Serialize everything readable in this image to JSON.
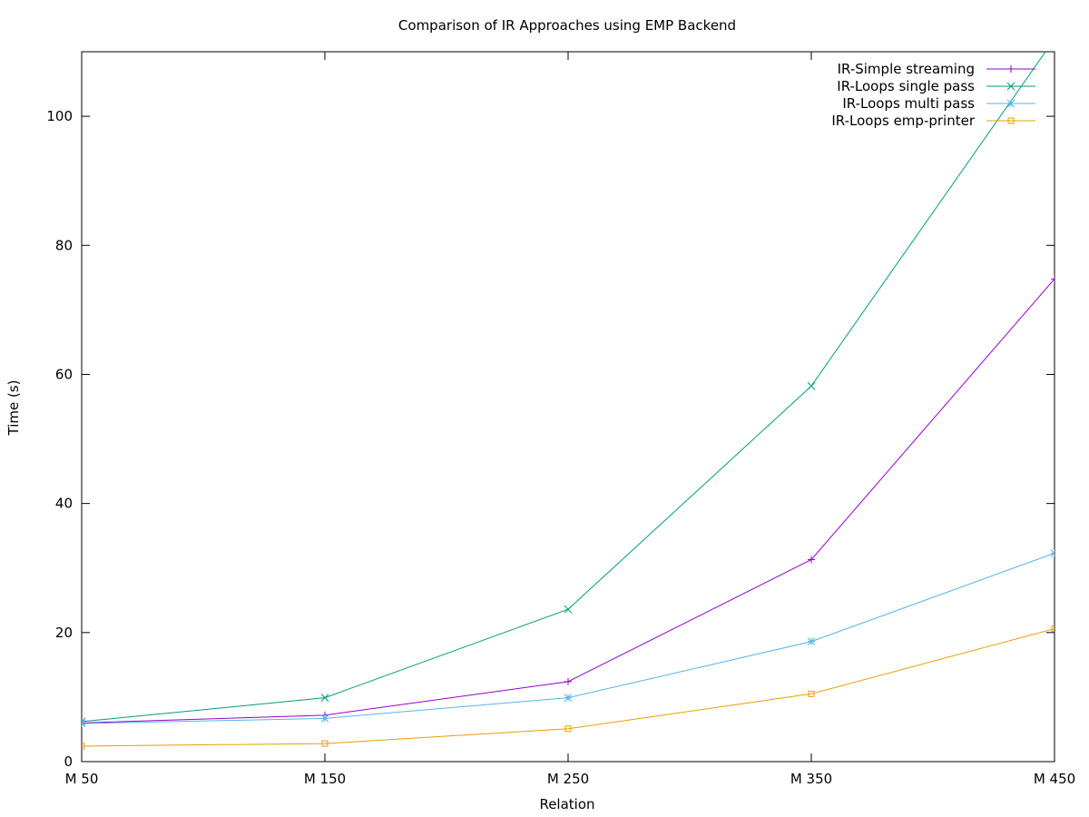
{
  "chart_data": {
    "type": "line",
    "title": "Comparison of IR Approaches using EMP Backend",
    "xlabel": "Relation",
    "ylabel": "Time (s)",
    "categories": [
      "M 50",
      "M 150",
      "M 250",
      "M 350",
      "M 450"
    ],
    "ylim": [
      0,
      110
    ],
    "yticks": [
      "0",
      "20",
      "40",
      "60",
      "80",
      "100"
    ],
    "grid": false,
    "legend_position": "top-right",
    "series": [
      {
        "name": "IR-Simple streaming",
        "color": "#9400d3",
        "marker": "plus",
        "values": [
          6.0,
          7.2,
          12.4,
          31.3,
          74.8
        ]
      },
      {
        "name": "IR-Loops single pass",
        "color": "#009e73",
        "marker": "cross",
        "values": [
          6.2,
          9.9,
          23.6,
          58.2,
          112.0
        ]
      },
      {
        "name": "IR-Loops multi pass",
        "color": "#56b4e9",
        "marker": "star",
        "values": [
          5.9,
          6.7,
          9.9,
          18.6,
          32.3
        ]
      },
      {
        "name": "IR-Loops emp-printer",
        "color": "#e69f00",
        "marker": "square",
        "values": [
          2.4,
          2.8,
          5.1,
          10.5,
          20.6
        ]
      }
    ]
  }
}
